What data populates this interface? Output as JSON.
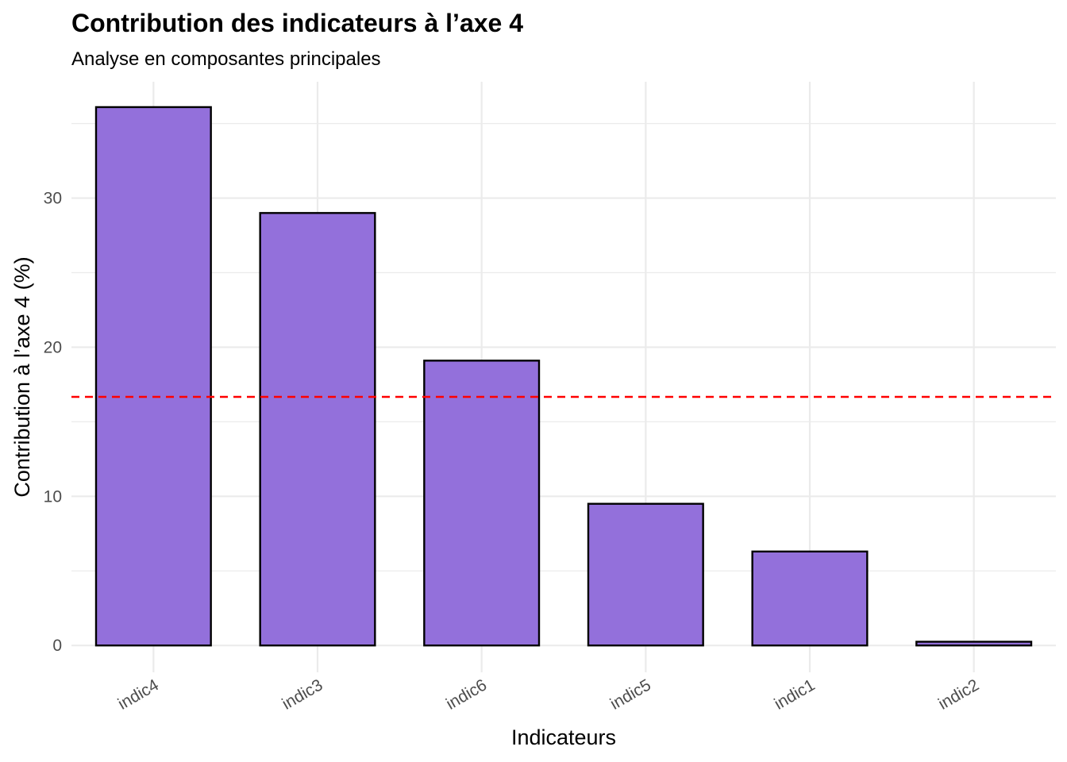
{
  "chart_data": {
    "type": "bar",
    "title": "Contribution des indicateurs à l’axe 4",
    "subtitle": "Analyse en composantes principales",
    "xlabel": "Indicateurs",
    "ylabel": "Contribution à l’axe 4 (%)",
    "categories": [
      "indic4",
      "indic3",
      "indic6",
      "indic5",
      "indic1",
      "indic2"
    ],
    "values": [
      36.1,
      29.0,
      19.1,
      9.5,
      6.3,
      0.25
    ],
    "ylim": [
      -1.8,
      37.8
    ],
    "yticks": [
      0,
      10,
      20,
      30
    ],
    "reference_line": {
      "value": 16.67,
      "style": "dashed",
      "color": "#ff0000"
    },
    "bar_fill": "#9370db",
    "bar_stroke": "#000000",
    "grid": true,
    "legend": "none"
  }
}
